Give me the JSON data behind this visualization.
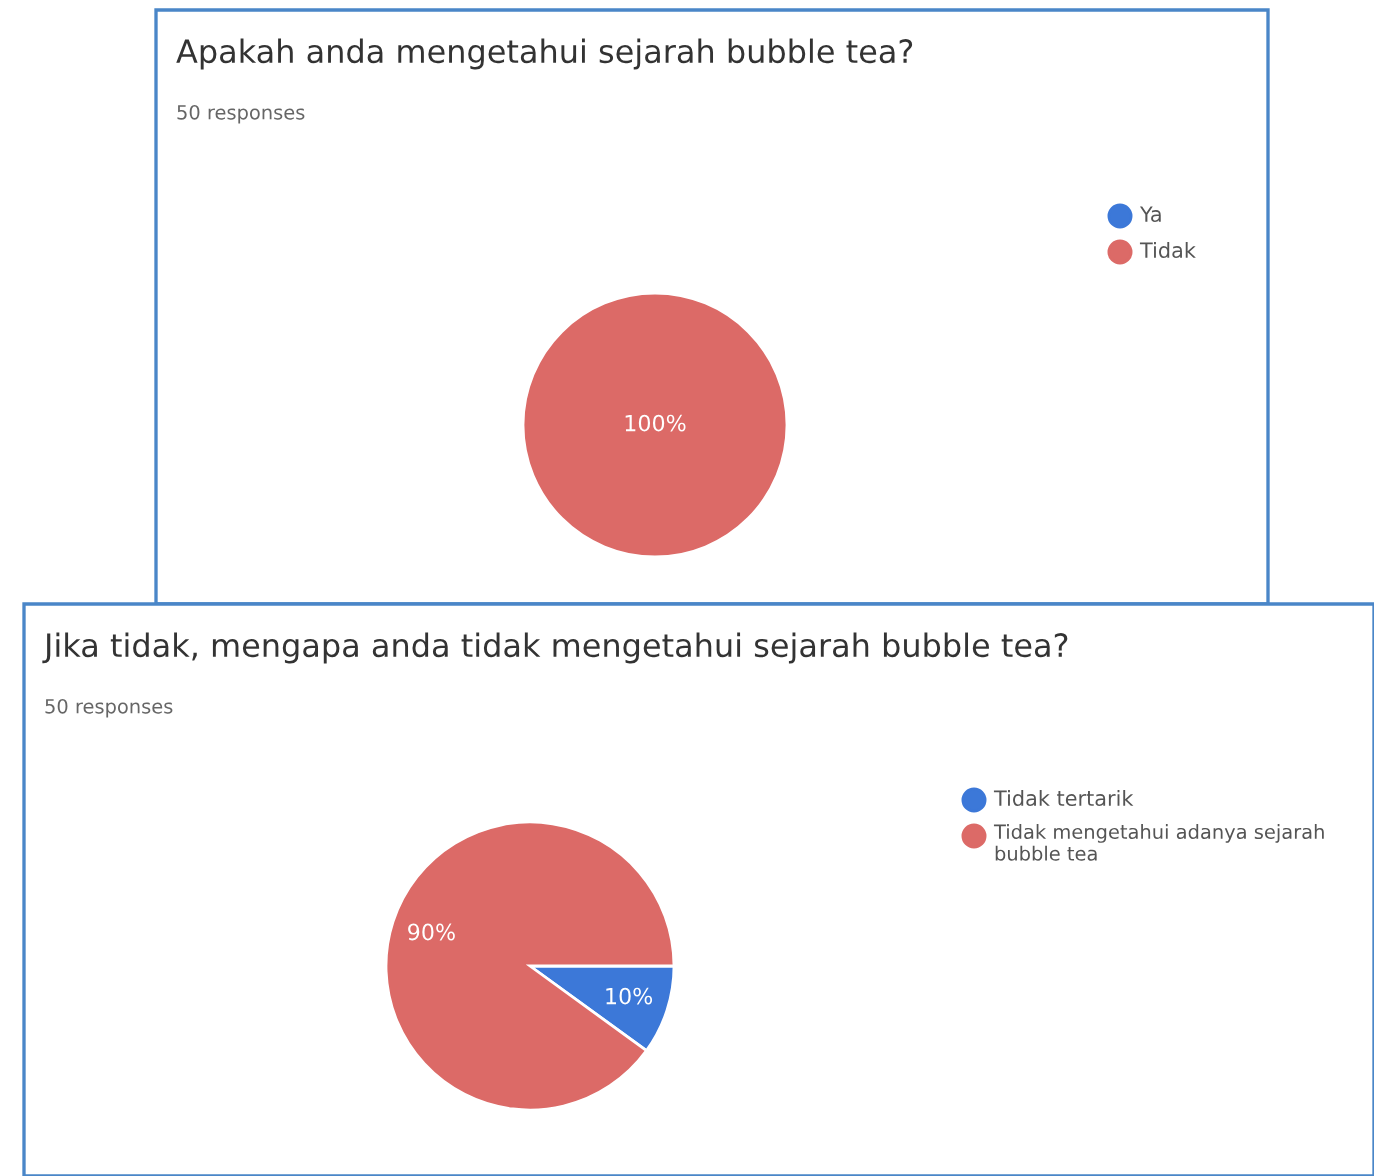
{
  "chart_data": [
    {
      "type": "pie",
      "title": "Apakah anda mengetahui sejarah bubble tea?",
      "subtitle": "50 responses",
      "categories": [
        "Ya",
        "Tidak"
      ],
      "values": [
        0,
        100
      ],
      "colors": [
        "#3c78d8",
        "#dc6a67"
      ],
      "value_labels": [
        null,
        "100%"
      ],
      "legend": "right"
    },
    {
      "type": "pie",
      "title": "Jika tidak, mengapa anda tidak mengetahui sejarah bubble tea?",
      "subtitle": "50 responses",
      "categories": [
        "Tidak tertarik",
        "Tidak mengetahui adanya sejarah bubble tea"
      ],
      "values": [
        10,
        90
      ],
      "colors": [
        "#3c78d8",
        "#dc6a67"
      ],
      "value_labels": [
        "10%",
        "90%"
      ],
      "legend": "right"
    }
  ]
}
